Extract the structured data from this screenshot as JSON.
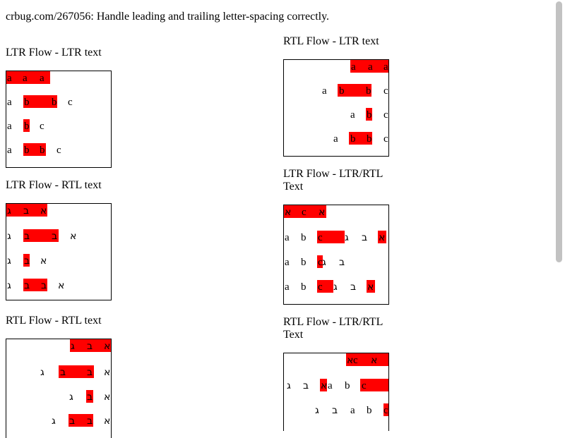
{
  "heading": "crbug.com/267056: Handle leading and trailing letter-spacing correctly.",
  "sections": {
    "ltr_ltr": "LTR Flow - LTR text",
    "ltr_rtl": "LTR Flow - RTL text",
    "rtl_rtl": "RTL Flow - RTL text",
    "rtl_ltr": "RTL Flow - LTR text",
    "ltr_mixed": "LTR Flow - LTR/RTL Text",
    "rtl_mixed": "RTL Flow - LTR/RTL Text"
  },
  "glyphs": {
    "a": "a",
    "b": "b",
    "c": "c",
    "alef": "א",
    "bet": "ב",
    "gimel": "ג"
  },
  "colors": {
    "highlight": "#ff0000"
  }
}
